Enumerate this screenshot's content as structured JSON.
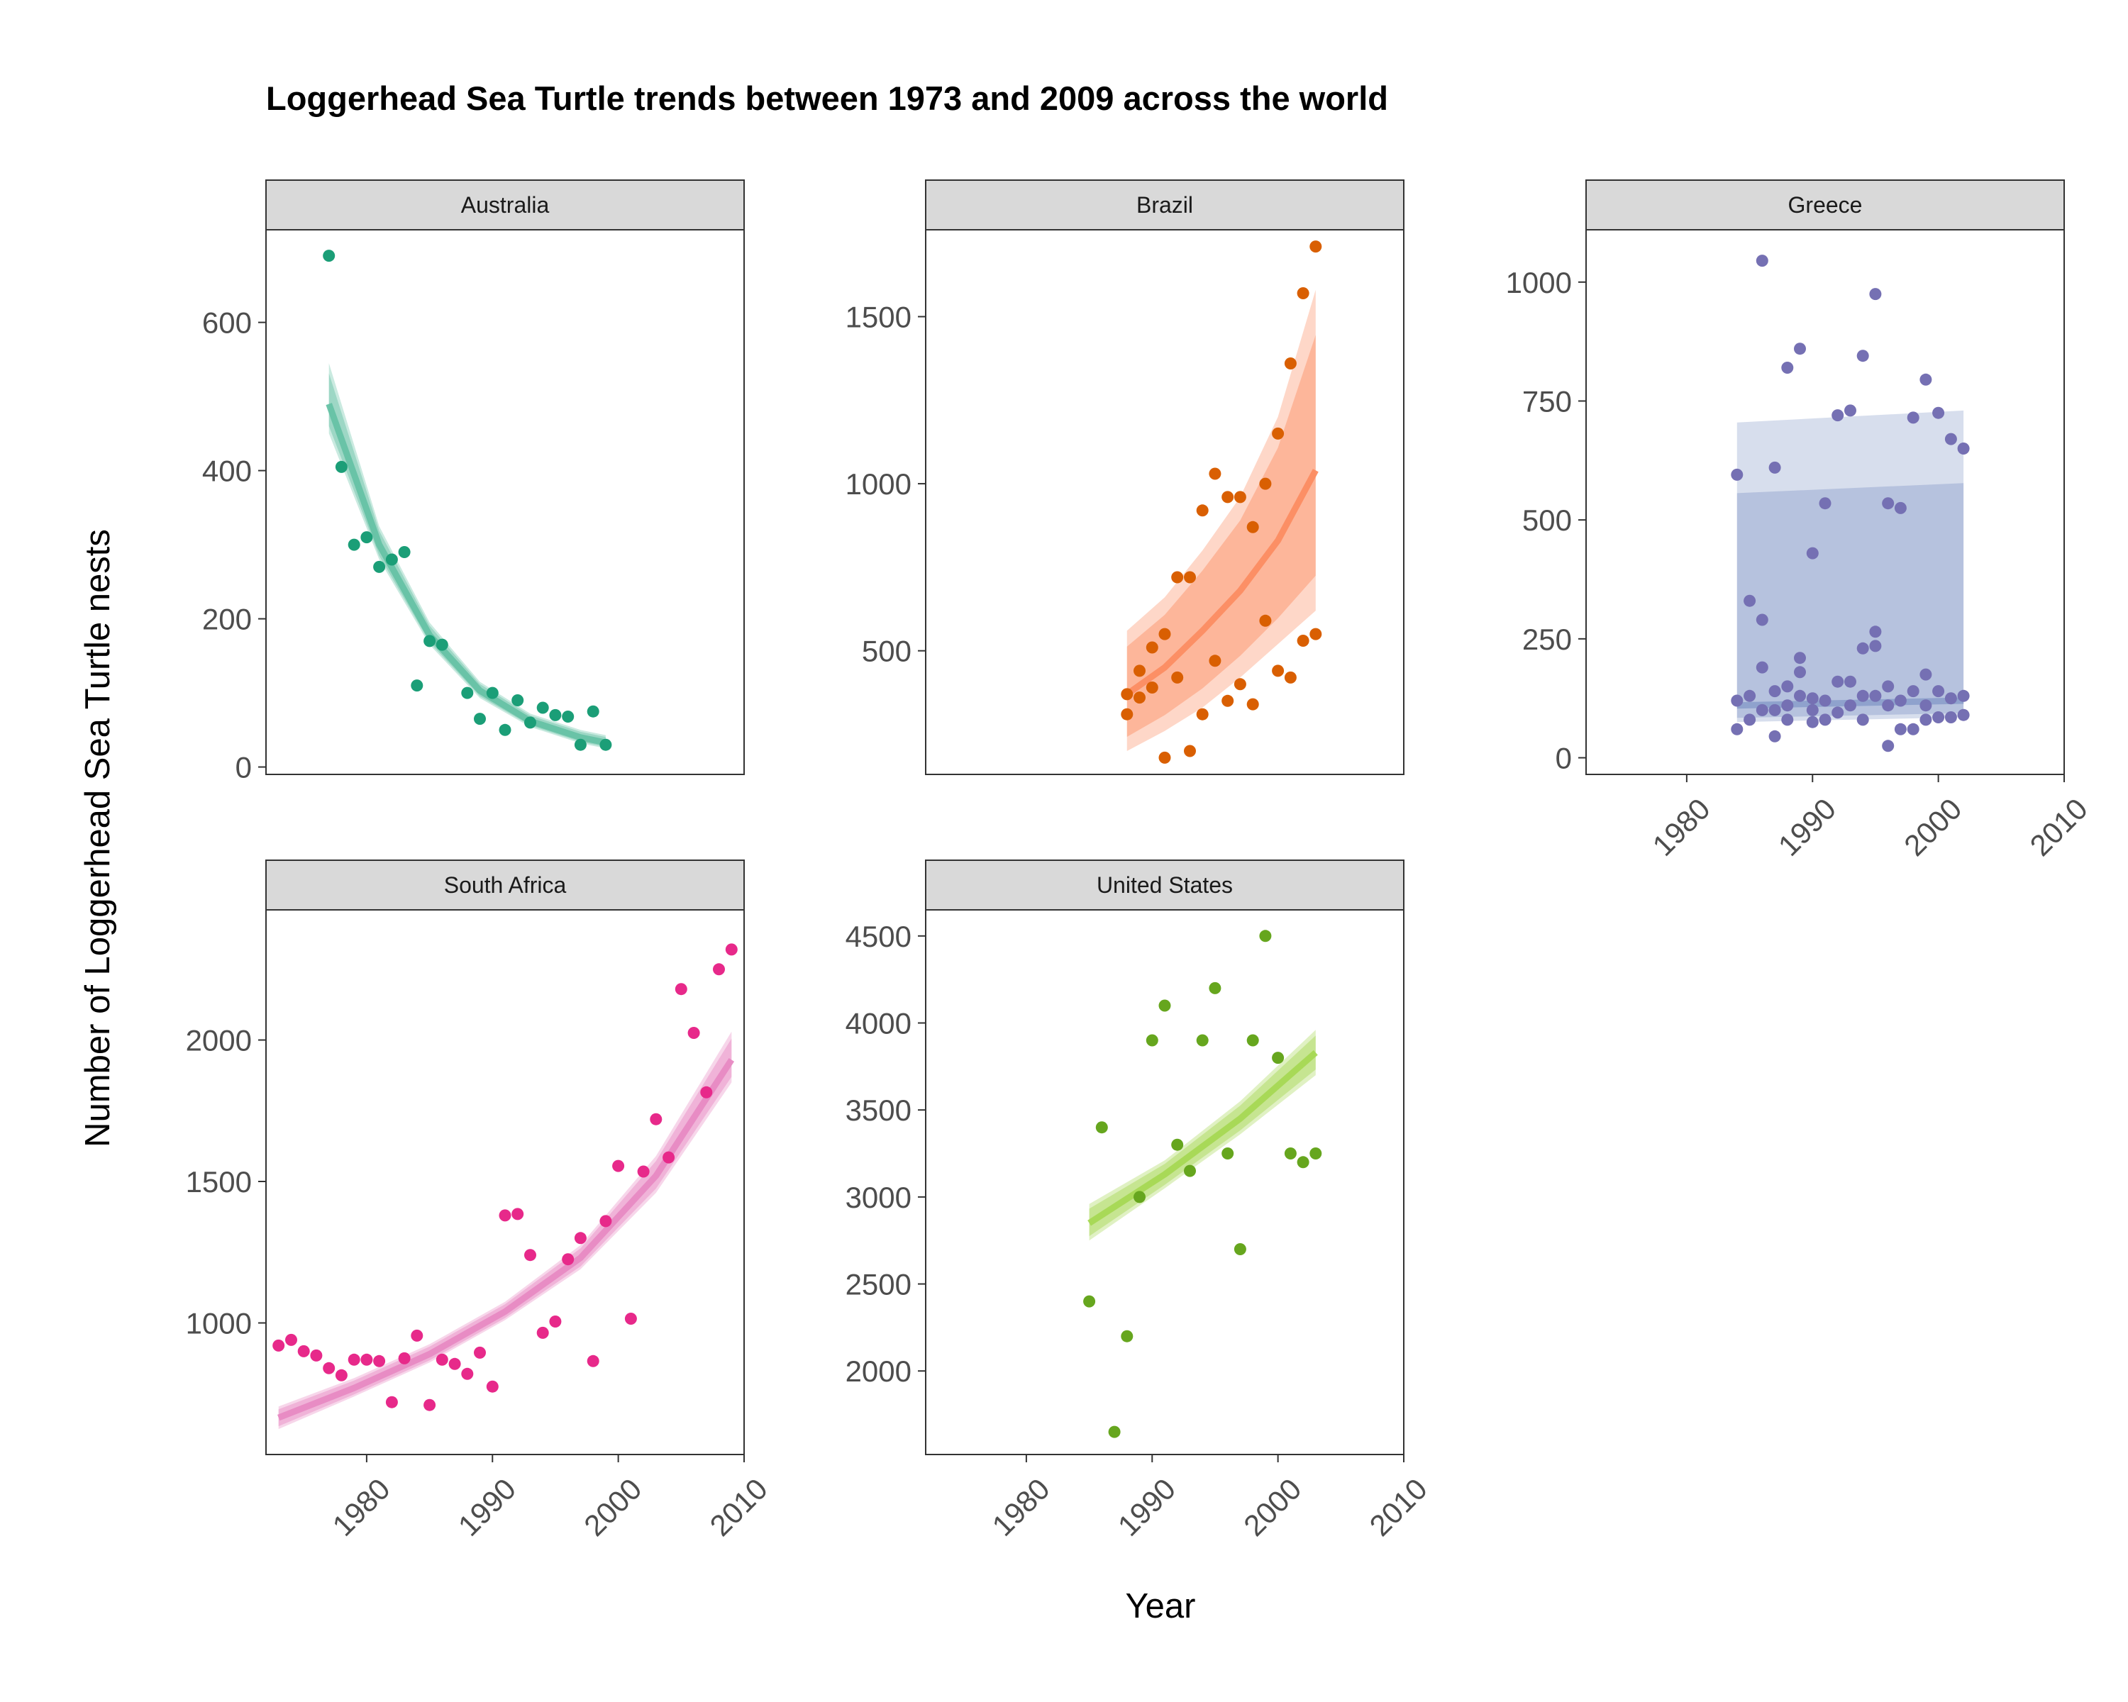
{
  "chart_data": {
    "type": "scatter",
    "title": "Loggerhead Sea Turtle trends between 1973 and 2009 across the world",
    "xlabel": "Year",
    "ylabel": "Number of Loggerhead Sea Turtle nests",
    "x_ticks": [
      1980,
      1990,
      2000,
      2010
    ],
    "xlim": [
      1972,
      2010
    ],
    "grid": false,
    "legend": "none",
    "panels": [
      {
        "name": "Australia",
        "color": "#1b9e77",
        "ribbon_color": "#66c2a5",
        "ylim": [
          -10,
          725
        ],
        "y_ticks": [
          0,
          200,
          400,
          600
        ],
        "x": [
          1977,
          1978,
          1979,
          1980,
          1981,
          1982,
          1983,
          1984,
          1985,
          1986,
          1988,
          1989,
          1990,
          1991,
          1992,
          1993,
          1994,
          1995,
          1996,
          1997,
          1998,
          1999
        ],
        "y": [
          690,
          405,
          300,
          310,
          270,
          280,
          290,
          110,
          170,
          165,
          100,
          65,
          100,
          50,
          90,
          60,
          80,
          70,
          68,
          30,
          75,
          30
        ],
        "trend": {
          "x": [
            1977,
            1981,
            1985,
            1989,
            1993,
            1997,
            1999
          ],
          "y": [
            490,
            300,
            178,
            103,
            62,
            40,
            33
          ],
          "lower": [
            450,
            280,
            165,
            93,
            54,
            32,
            25
          ],
          "upper": [
            545,
            325,
            195,
            115,
            72,
            50,
            43
          ]
        }
      },
      {
        "name": "Brazil",
        "color": "#d95f02",
        "ribbon_color": "#fc8d62",
        "ylim": [
          130,
          1760
        ],
        "y_ticks": [
          500,
          1000,
          1500
        ],
        "x": [
          1988,
          1988,
          1989,
          1989,
          1990,
          1990,
          1991,
          1991,
          1992,
          1992,
          1993,
          1993,
          1994,
          1994,
          1995,
          1995,
          1996,
          1996,
          1997,
          1997,
          1998,
          1998,
          1999,
          1999,
          2000,
          2000,
          2001,
          2001,
          2002,
          2002,
          2003,
          2003
        ],
        "y": [
          370,
          310,
          440,
          360,
          390,
          510,
          550,
          180,
          720,
          420,
          720,
          200,
          920,
          310,
          1030,
          470,
          960,
          350,
          960,
          400,
          870,
          340,
          1000,
          590,
          1150,
          440,
          1360,
          420,
          1570,
          530,
          1710,
          550
        ],
        "trend": {
          "x": [
            1988,
            1991,
            1994,
            1997,
            2000,
            2003
          ],
          "y": [
            370,
            450,
            560,
            680,
            830,
            1040
          ],
          "lower": [
            200,
            260,
            330,
            420,
            520,
            620
          ],
          "upper": [
            560,
            660,
            800,
            960,
            1200,
            1580
          ]
        }
      },
      {
        "name": "Greece",
        "color": "#7570b3",
        "ribbon_color": "#8da0cb",
        "ylim": [
          -35,
          1110
        ],
        "y_ticks": [
          0,
          250,
          500,
          750,
          1000
        ],
        "x": [
          1984,
          1984,
          1984,
          1985,
          1985,
          1985,
          1986,
          1986,
          1986,
          1986,
          1987,
          1987,
          1987,
          1987,
          1988,
          1988,
          1988,
          1988,
          1989,
          1989,
          1989,
          1989,
          1990,
          1990,
          1990,
          1990,
          1991,
          1991,
          1991,
          1992,
          1992,
          1992,
          1993,
          1993,
          1993,
          1994,
          1994,
          1994,
          1994,
          1995,
          1995,
          1995,
          1995,
          1996,
          1996,
          1996,
          1996,
          1997,
          1997,
          1997,
          1998,
          1998,
          1998,
          1999,
          1999,
          1999,
          1999,
          2000,
          2000,
          2000,
          2001,
          2001,
          2001,
          2002,
          2002,
          2002
        ],
        "y": [
          595,
          120,
          60,
          330,
          130,
          80,
          1045,
          290,
          190,
          100,
          610,
          140,
          100,
          45,
          820,
          150,
          110,
          80,
          860,
          210,
          180,
          130,
          430,
          125,
          100,
          75,
          535,
          120,
          80,
          720,
          160,
          95,
          730,
          160,
          110,
          845,
          230,
          130,
          80,
          975,
          265,
          235,
          130,
          535,
          150,
          110,
          25,
          525,
          120,
          60,
          715,
          140,
          60,
          795,
          175,
          110,
          80,
          725,
          140,
          85,
          670,
          125,
          85,
          650,
          130,
          90
        ],
        "trend": {
          "x": [
            1984,
            2002
          ],
          "y": [
            110,
            120
          ],
          "lower": [
            75,
            85
          ],
          "upper": [
            705,
            730
          ]
        }
      },
      {
        "name": "South Africa",
        "color": "#e7298a",
        "ribbon_color": "#e78ac3",
        "ylim": [
          535,
          2460
        ],
        "y_ticks": [
          1000,
          1500,
          2000
        ],
        "x": [
          1973,
          1974,
          1975,
          1976,
          1977,
          1978,
          1979,
          1980,
          1981,
          1982,
          1983,
          1984,
          1985,
          1986,
          1987,
          1988,
          1989,
          1990,
          1991,
          1992,
          1993,
          1994,
          1995,
          1996,
          1997,
          1998,
          1999,
          2000,
          2001,
          2002,
          2003,
          2004,
          2005,
          2006,
          2007,
          2008,
          2009
        ],
        "y": [
          920,
          940,
          900,
          885,
          840,
          815,
          870,
          870,
          865,
          720,
          875,
          955,
          710,
          870,
          855,
          820,
          895,
          775,
          1380,
          1385,
          1240,
          965,
          1005,
          1225,
          1300,
          865,
          1360,
          1555,
          1015,
          1535,
          1720,
          1585,
          2180,
          2025,
          1815,
          2250,
          2320
        ],
        "trend": {
          "x": [
            1973,
            1979,
            1985,
            1991,
            1997,
            2003,
            2009
          ],
          "y": [
            665,
            770,
            890,
            1040,
            1230,
            1520,
            1930
          ],
          "lower": [
            625,
            740,
            860,
            1010,
            1190,
            1460,
            1850
          ],
          "upper": [
            705,
            805,
            925,
            1075,
            1275,
            1590,
            2030
          ]
        }
      },
      {
        "name": "United States",
        "color": "#66a61e",
        "ribbon_color": "#a6d854",
        "ylim": [
          1520,
          4650
        ],
        "y_ticks": [
          2000,
          2500,
          3000,
          3500,
          4000,
          4500
        ],
        "x": [
          1985,
          1986,
          1987,
          1988,
          1989,
          1990,
          1991,
          1992,
          1993,
          1994,
          1995,
          1996,
          1997,
          1998,
          1999,
          2000,
          2001,
          2002,
          2003
        ],
        "y": [
          2400,
          3400,
          1650,
          2200,
          3000,
          3900,
          4100,
          3300,
          3150,
          3900,
          4200,
          3250,
          2700,
          3900,
          4500,
          3800,
          3250,
          3200,
          3250
        ],
        "trend": {
          "x": [
            1985,
            1991,
            1997,
            2003
          ],
          "y": [
            2850,
            3130,
            3450,
            3830
          ],
          "lower": [
            2750,
            3050,
            3360,
            3700
          ],
          "upper": [
            2960,
            3210,
            3550,
            3960
          ]
        }
      }
    ]
  }
}
